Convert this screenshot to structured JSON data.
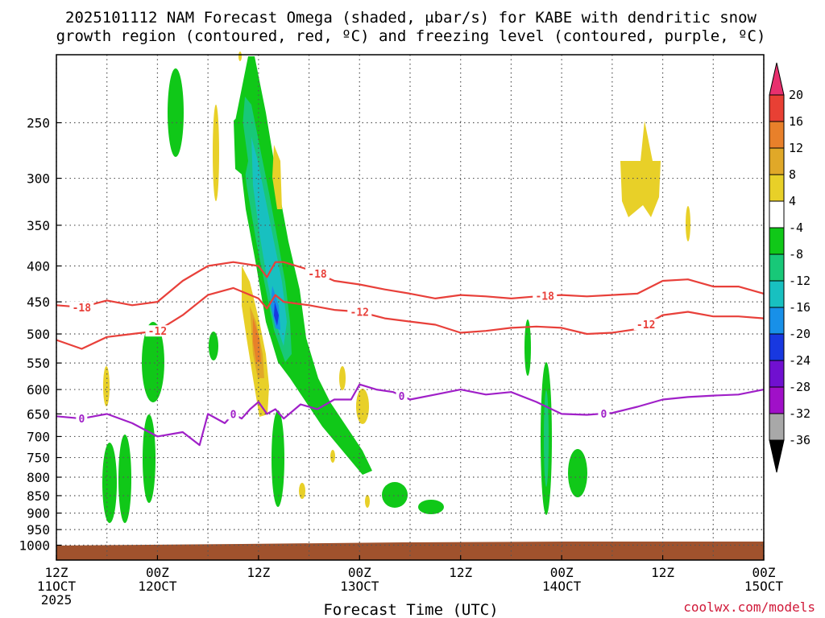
{
  "chart_data": {
    "type": "heatmap",
    "title_line1": "2025101112 NAM Forecast Omega (shaded, μbar/s) for KABE with dendritic snow",
    "title_line2": "growth region (contoured, red, ºC) and freezing level (contoured, purple, ºC)",
    "xlabel": "Forecast Time (UTC)",
    "ylabel": "",
    "credit": "coolwx.com/models",
    "y_scale": "log-pressure (inverted)",
    "ylim_hpa": [
      1050,
      200
    ],
    "y_ticks": [
      250,
      300,
      350,
      400,
      450,
      500,
      550,
      600,
      650,
      700,
      750,
      800,
      850,
      900,
      950,
      1000
    ],
    "x_range_hours": [
      0,
      84
    ],
    "x_ticks": [
      {
        "hour": 0,
        "line1": "12Z",
        "line2": "11OCT",
        "line3": "2025"
      },
      {
        "hour": 12,
        "line1": "00Z",
        "line2": "12OCT",
        "line3": ""
      },
      {
        "hour": 24,
        "line1": "12Z",
        "line2": "",
        "line3": ""
      },
      {
        "hour": 36,
        "line1": "00Z",
        "line2": "13OCT",
        "line3": ""
      },
      {
        "hour": 48,
        "line1": "12Z",
        "line2": "",
        "line3": ""
      },
      {
        "hour": 60,
        "line1": "00Z",
        "line2": "14OCT",
        "line3": ""
      },
      {
        "hour": 72,
        "line1": "12Z",
        "line2": "",
        "line3": ""
      },
      {
        "hour": 84,
        "line1": "00Z",
        "line2": "15OCT",
        "line3": ""
      }
    ],
    "grid": "dotted",
    "colorbar": {
      "labels": [
        "20",
        "16",
        "12",
        "8",
        "4",
        "-4",
        "-8",
        "-12",
        "-16",
        "-20",
        "-24",
        "-28",
        "-32",
        "-36"
      ],
      "colors": [
        "#e8306e",
        "#e84034",
        "#e8802a",
        "#e0a828",
        "#e8d028",
        "#ffffff",
        "#10c818",
        "#18c878",
        "#18c0c0",
        "#1890e8",
        "#1838e0",
        "#7010d0",
        "#a010c8",
        "#a8a8a8",
        "#000000"
      ]
    },
    "series": [
      {
        "name": "-18",
        "color": "#e8403a",
        "x": [
          0,
          3,
          6,
          9,
          12,
          15,
          18,
          21,
          24,
          25,
          26,
          27,
          30,
          33,
          36,
          39,
          42,
          45,
          48,
          51,
          54,
          57,
          60,
          63,
          66,
          69,
          72,
          75,
          78,
          81,
          84
        ],
        "y": [
          455,
          458,
          448,
          455,
          450,
          420,
          400,
          395,
          400,
          415,
          395,
          395,
          405,
          420,
          425,
          432,
          438,
          445,
          440,
          442,
          445,
          442,
          440,
          442,
          440,
          438,
          420,
          418,
          428,
          428,
          438
        ]
      },
      {
        "name": "-12",
        "color": "#e8403a",
        "x": [
          0,
          3,
          6,
          9,
          12,
          15,
          18,
          21,
          24,
          25,
          26,
          27,
          30,
          33,
          36,
          39,
          42,
          45,
          48,
          51,
          54,
          57,
          60,
          63,
          66,
          69,
          72,
          75,
          78,
          81,
          84
        ],
        "y": [
          510,
          525,
          505,
          500,
          495,
          470,
          440,
          430,
          445,
          460,
          440,
          450,
          455,
          462,
          465,
          475,
          480,
          485,
          498,
          495,
          490,
          488,
          490,
          500,
          498,
          492,
          470,
          465,
          472,
          472,
          475
        ]
      },
      {
        "name": "0",
        "color": "#a020c8",
        "x": [
          0,
          3,
          6,
          9,
          12,
          15,
          17,
          18,
          20,
          21,
          22,
          23,
          24,
          25,
          26,
          27,
          29,
          31,
          33,
          35,
          36,
          38,
          40,
          42,
          45,
          48,
          51,
          54,
          57,
          60,
          63,
          66,
          69,
          72,
          75,
          78,
          81,
          84
        ],
        "y": [
          655,
          660,
          650,
          670,
          700,
          690,
          720,
          650,
          670,
          650,
          660,
          640,
          625,
          650,
          640,
          660,
          630,
          640,
          620,
          620,
          590,
          600,
          605,
          620,
          610,
          600,
          610,
          605,
          625,
          650,
          652,
          648,
          635,
          620,
          615,
          612,
          610,
          600
        ]
      }
    ]
  }
}
